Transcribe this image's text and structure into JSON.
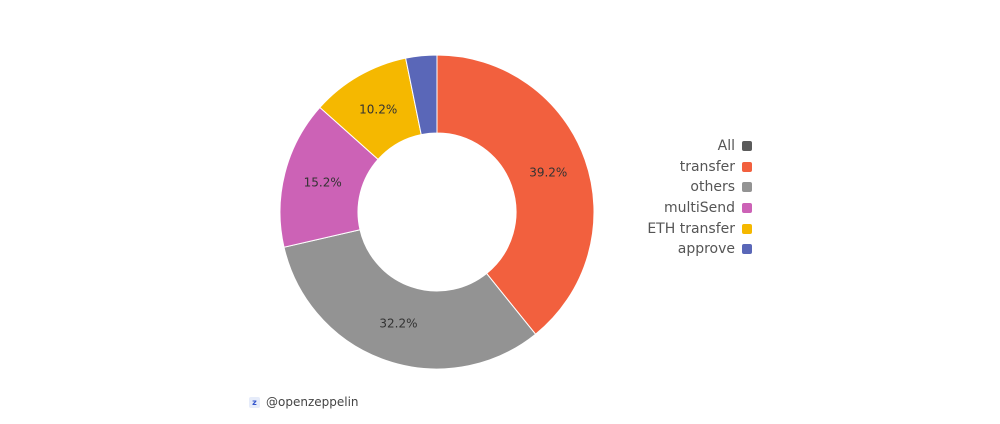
{
  "chart_data": {
    "type": "pie",
    "donut": true,
    "slices": [
      {
        "label": "transfer",
        "value": 39.2,
        "value_label": "39.2%",
        "color": "#f2603e"
      },
      {
        "label": "others",
        "value": 32.2,
        "value_label": "32.2%",
        "color": "#939393"
      },
      {
        "label": "multiSend",
        "value": 15.2,
        "value_label": "15.2%",
        "color": "#cc62b6"
      },
      {
        "label": "ETH transfer",
        "value": 10.2,
        "value_label": "10.2%",
        "color": "#f5b800"
      },
      {
        "label": "approve",
        "value": 3.2,
        "value_label": "",
        "color": "#5a67b8"
      }
    ],
    "legend": {
      "placement": "right",
      "entries": [
        {
          "label": "All",
          "color": "#5b5b5b"
        },
        {
          "label": "transfer",
          "color": "#f2603e"
        },
        {
          "label": "others",
          "color": "#939393"
        },
        {
          "label": "multiSend",
          "color": "#cc62b6"
        },
        {
          "label": "ETH transfer",
          "color": "#f5b800"
        },
        {
          "label": "approve",
          "color": "#5a67b8"
        }
      ]
    }
  },
  "watermark": {
    "icon": "zeppelin-logo-icon",
    "text": "@openzeppelin"
  }
}
